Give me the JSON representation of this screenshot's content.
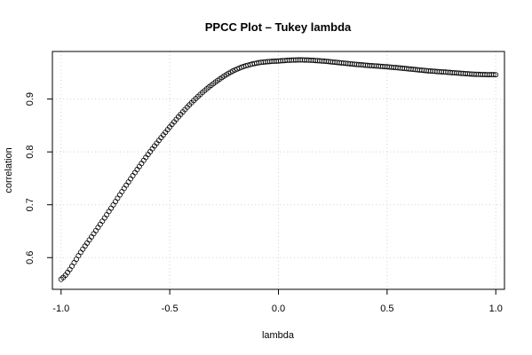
{
  "chart_data": {
    "type": "scatter",
    "title": "PPCC Plot – Tukey lambda",
    "xlabel": "lambda",
    "ylabel": "correlation",
    "xlim": [
      -1.04,
      1.04
    ],
    "ylim": [
      0.54,
      0.99
    ],
    "xticks": [
      -1.0,
      -0.5,
      0.0,
      0.5,
      1.0
    ],
    "xtick_labels": [
      "-1.0",
      "-0.5",
      "0.0",
      "0.5",
      "1.0"
    ],
    "yticks": [
      0.6,
      0.7,
      0.8,
      0.9
    ],
    "ytick_labels": [
      "0.6",
      "0.7",
      "0.8",
      "0.9"
    ],
    "grid": true,
    "marker": "open-circle",
    "series": [
      {
        "x": [
          -1.0,
          -0.9,
          -0.8,
          -0.7,
          -0.6,
          -0.5,
          -0.4,
          -0.3,
          -0.2,
          -0.1,
          0.0,
          0.1,
          0.2,
          0.3,
          0.4,
          0.5,
          0.6,
          0.7,
          0.8,
          0.9,
          1.0
        ],
        "values": [
          0.559,
          0.616,
          0.675,
          0.737,
          0.795,
          0.847,
          0.893,
          0.929,
          0.955,
          0.968,
          0.972,
          0.974,
          0.972,
          0.968,
          0.964,
          0.961,
          0.957,
          0.953,
          0.95,
          0.947,
          0.946
        ]
      }
    ]
  }
}
